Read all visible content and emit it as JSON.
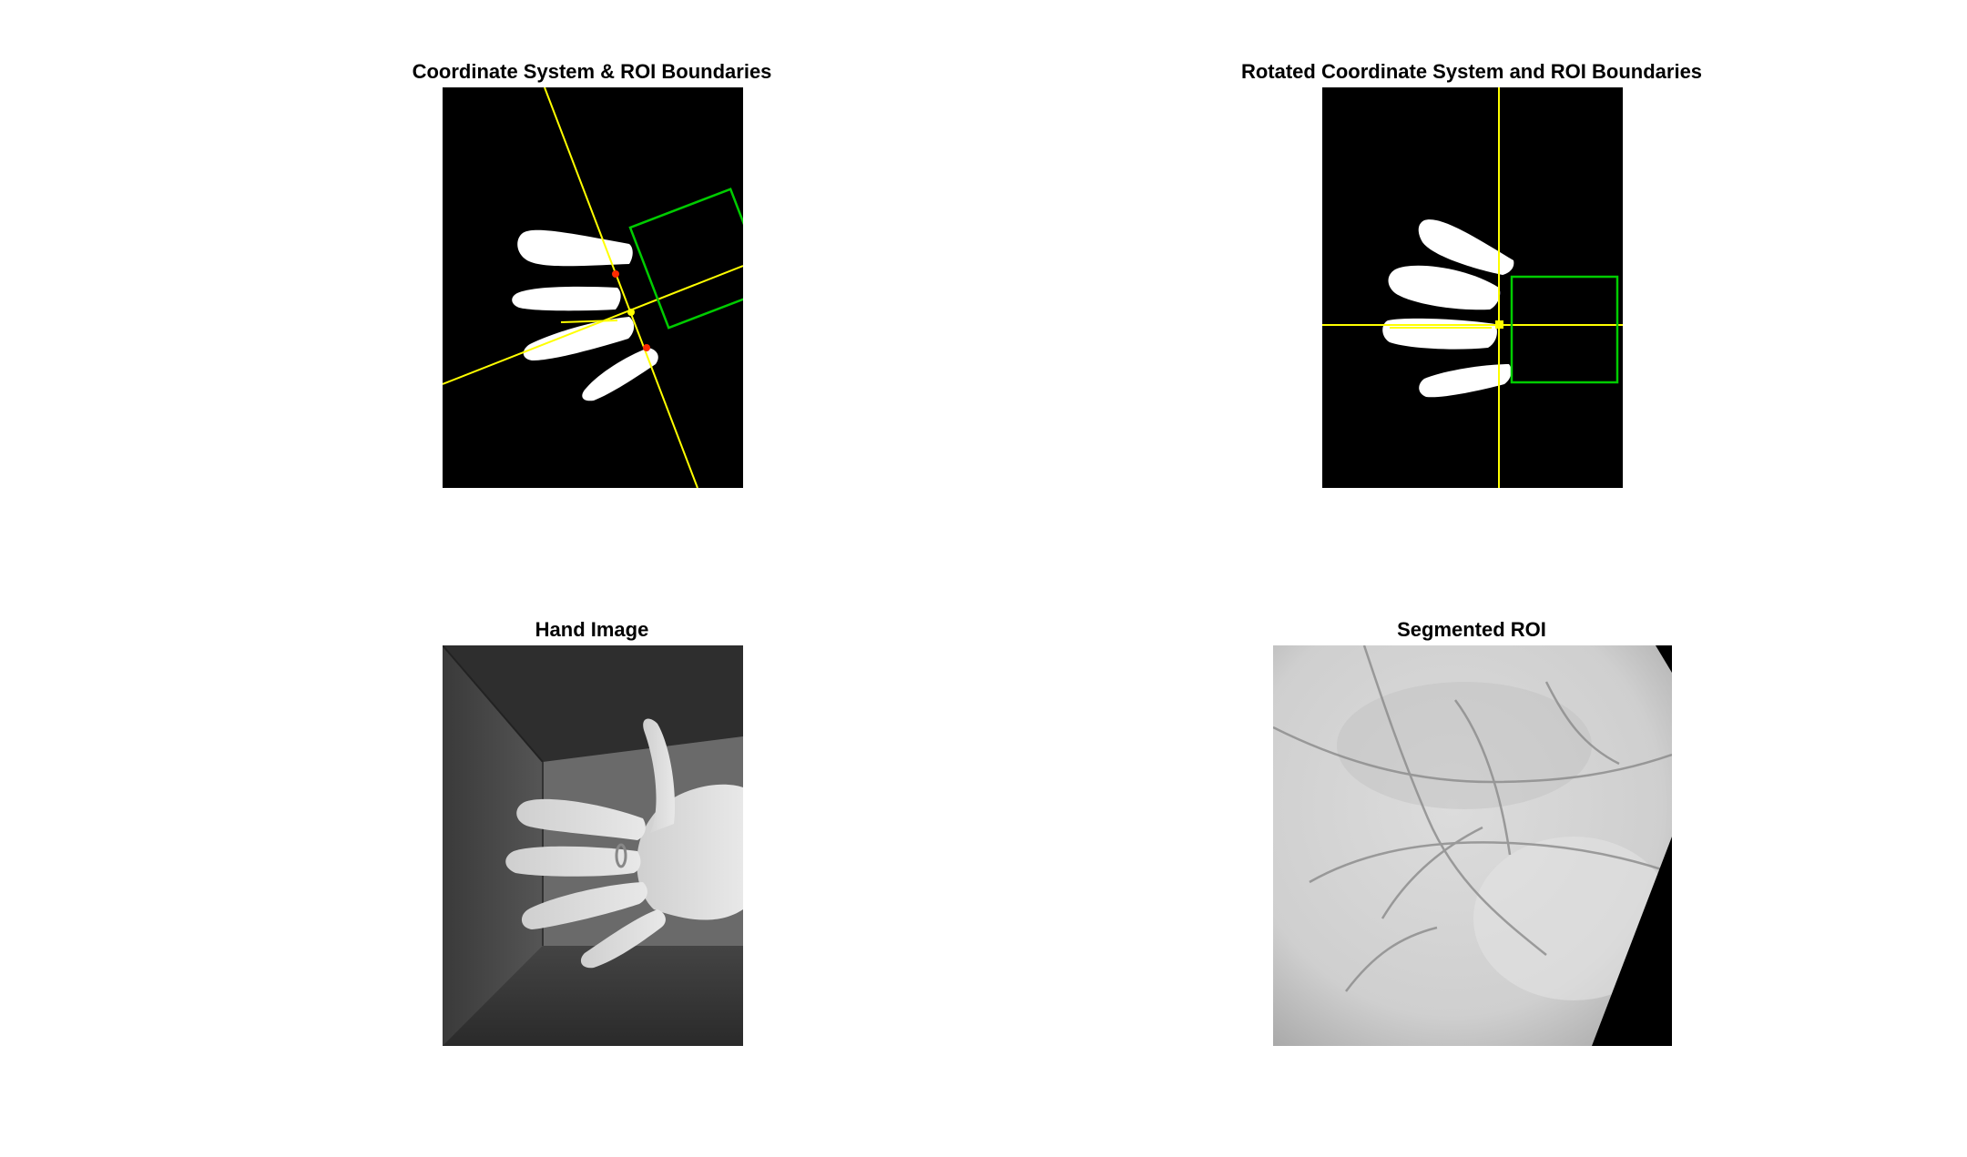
{
  "figure": {
    "panels": [
      {
        "id": "coord",
        "title": "Coordinate System & ROI Boundaries"
      },
      {
        "id": "rotated",
        "title": "Rotated Coordinate System and ROI Boundaries"
      },
      {
        "id": "hand",
        "title": "Hand Image"
      },
      {
        "id": "roi",
        "title": "Segmented ROI"
      }
    ],
    "colors": {
      "background": "#000000",
      "hand_mask": "#ffffff",
      "axes": "#ffff00",
      "roi_box": "#00cc00",
      "keypoints": "#ff2a00"
    }
  }
}
